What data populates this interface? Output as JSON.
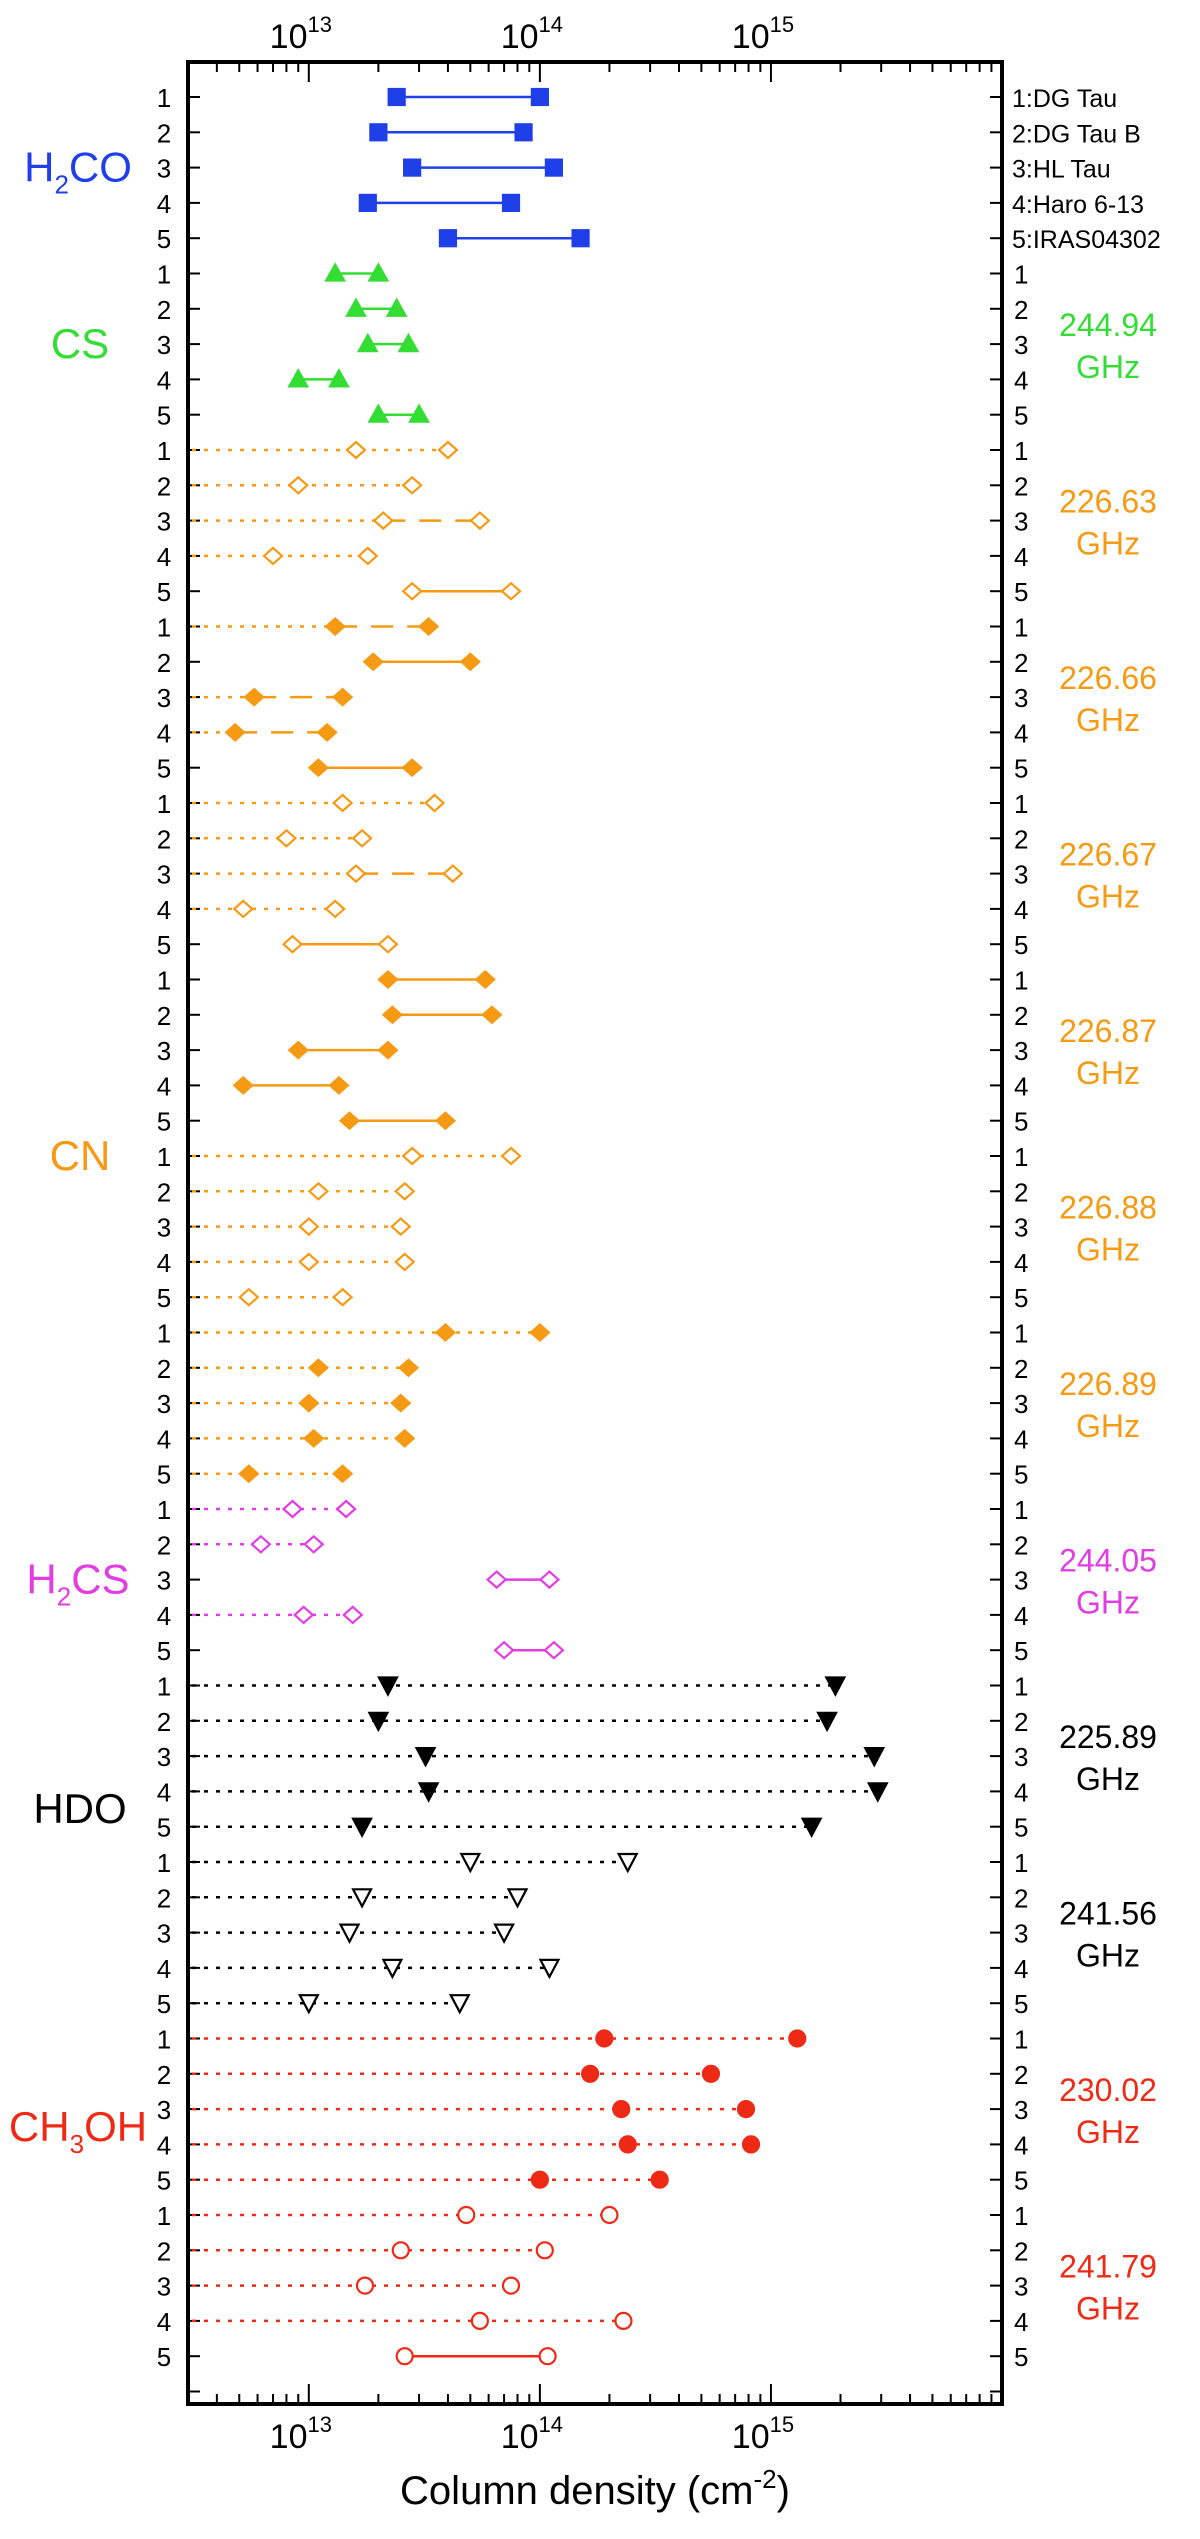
{
  "chart_data": {
    "type": "scatter",
    "xlabel": "Column density (cm",
    "xlabel_sup": "-2",
    "xlabel_close": ")",
    "xscale": "log",
    "xlim": [
      3000000000000.0,
      1e+16
    ],
    "ticks": [
      {
        "value": 10000000000000.0,
        "base": "10",
        "exp": "13"
      },
      {
        "value": 100000000000000.0,
        "base": "10",
        "exp": "14"
      },
      {
        "value": 1000000000000000.0,
        "base": "10",
        "exp": "15"
      }
    ],
    "sources": [
      "1:DG Tau",
      "2:DG Tau B",
      "3:HL Tau",
      "4:Haro 6-13",
      "5:IRAS04302"
    ],
    "molecules": [
      {
        "name": "H",
        "sub": "2",
        "tail": "CO",
        "color": "#1f3fe8"
      },
      {
        "name": "CS",
        "sub": "",
        "tail": "",
        "color": "#33dd33"
      },
      {
        "name": "CN",
        "sub": "",
        "tail": "",
        "color": "#f59a12"
      },
      {
        "name": "H",
        "sub": "2",
        "tail": "CS",
        "color": "#e23de3"
      },
      {
        "name": "HDO",
        "sub": "",
        "tail": "",
        "color": "#000000"
      },
      {
        "name": "CH",
        "sub": "3",
        "tail": "OH",
        "color": "#ee2a16"
      }
    ],
    "frequencies": [
      {
        "value": "244.94",
        "unit": "GHz",
        "color": "#33dd33"
      },
      {
        "value": "226.63",
        "unit": "GHz",
        "color": "#f59a12"
      },
      {
        "value": "226.66",
        "unit": "GHz",
        "color": "#f59a12"
      },
      {
        "value": "226.67",
        "unit": "GHz",
        "color": "#f59a12"
      },
      {
        "value": "226.87",
        "unit": "GHz",
        "color": "#f59a12"
      },
      {
        "value": "226.88",
        "unit": "GHz",
        "color": "#f59a12"
      },
      {
        "value": "226.89",
        "unit": "GHz",
        "color": "#f59a12"
      },
      {
        "value": "244.05",
        "unit": "GHz",
        "color": "#e23de3"
      },
      {
        "value": "225.89",
        "unit": "GHz",
        "color": "#000000"
      },
      {
        "value": "241.56",
        "unit": "GHz",
        "color": "#000000"
      },
      {
        "value": "230.02",
        "unit": "GHz",
        "color": "#ee2a16"
      },
      {
        "value": "241.79",
        "unit": "GHz",
        "color": "#ee2a16"
      }
    ],
    "rows": [
      {
        "label": "1",
        "low": 24000000000000.0,
        "high": 100000000000000.0,
        "style": "solid",
        "marker": "square",
        "fill": true,
        "color": "#1f3fe8"
      },
      {
        "label": "2",
        "low": 20000000000000.0,
        "high": 85000000000000.0,
        "style": "solid",
        "marker": "square",
        "fill": true,
        "color": "#1f3fe8"
      },
      {
        "label": "3",
        "low": 28000000000000.0,
        "high": 115000000000000.0,
        "style": "solid",
        "marker": "square",
        "fill": true,
        "color": "#1f3fe8"
      },
      {
        "label": "4",
        "low": 18000000000000.0,
        "high": 75000000000000.0,
        "style": "solid",
        "marker": "square",
        "fill": true,
        "color": "#1f3fe8"
      },
      {
        "label": "5",
        "low": 40000000000000.0,
        "high": 150000000000000.0,
        "style": "solid",
        "marker": "square",
        "fill": true,
        "color": "#1f3fe8"
      },
      {
        "label": "1",
        "low": 13000000000000.0,
        "high": 20000000000000.0,
        "style": "solid",
        "marker": "triangle",
        "fill": true,
        "color": "#33dd33"
      },
      {
        "label": "2",
        "low": 16000000000000.0,
        "high": 24000000000000.0,
        "style": "solid",
        "marker": "triangle",
        "fill": true,
        "color": "#33dd33"
      },
      {
        "label": "3",
        "low": 18000000000000.0,
        "high": 27000000000000.0,
        "style": "solid",
        "marker": "triangle",
        "fill": true,
        "color": "#33dd33"
      },
      {
        "label": "4",
        "low": 9000000000000.0,
        "high": 13500000000000.0,
        "style": "solid",
        "marker": "triangle",
        "fill": true,
        "color": "#33dd33"
      },
      {
        "label": "5",
        "low": 20000000000000.0,
        "high": 30000000000000.0,
        "style": "solid",
        "marker": "triangle",
        "fill": true,
        "color": "#33dd33"
      },
      {
        "label": "1",
        "low": 16000000000000.0,
        "high": 40000000000000.0,
        "style": "dotted",
        "marker": "diamond",
        "fill": false,
        "color": "#f59a12"
      },
      {
        "label": "2",
        "low": 9000000000000.0,
        "high": 28000000000000.0,
        "style": "dotted",
        "marker": "diamond",
        "fill": false,
        "color": "#f59a12"
      },
      {
        "label": "3",
        "low": 21000000000000.0,
        "high": 55000000000000.0,
        "style": "dashed",
        "marker": "diamond",
        "fill": false,
        "color": "#f59a12"
      },
      {
        "label": "4",
        "low": 7000000000000.0,
        "high": 18000000000000.0,
        "style": "dotted",
        "marker": "diamond",
        "fill": false,
        "color": "#f59a12"
      },
      {
        "label": "5",
        "low": 28000000000000.0,
        "high": 75000000000000.0,
        "style": "solid",
        "marker": "diamond",
        "fill": false,
        "color": "#f59a12"
      },
      {
        "label": "1",
        "low": 13000000000000.0,
        "high": 33000000000000.0,
        "style": "dashed",
        "marker": "diamond",
        "fill": true,
        "color": "#f59a12"
      },
      {
        "label": "2",
        "low": 19000000000000.0,
        "high": 50000000000000.0,
        "style": "solid",
        "marker": "diamond",
        "fill": true,
        "color": "#f59a12"
      },
      {
        "label": "3",
        "low": 5800000000000.0,
        "high": 14000000000000.0,
        "style": "dashed",
        "marker": "diamond",
        "fill": true,
        "color": "#f59a12"
      },
      {
        "label": "4",
        "low": 4800000000000.0,
        "high": 12000000000000.0,
        "style": "dashed",
        "marker": "diamond",
        "fill": true,
        "color": "#f59a12"
      },
      {
        "label": "5",
        "low": 11000000000000.0,
        "high": 28000000000000.0,
        "style": "solid",
        "marker": "diamond",
        "fill": true,
        "color": "#f59a12"
      },
      {
        "label": "1",
        "low": 14000000000000.0,
        "high": 35000000000000.0,
        "style": "dotted",
        "marker": "diamond",
        "fill": false,
        "color": "#f59a12"
      },
      {
        "label": "2",
        "low": 8000000000000.0,
        "high": 17000000000000.0,
        "style": "dotted",
        "marker": "diamond",
        "fill": false,
        "color": "#f59a12"
      },
      {
        "label": "3",
        "low": 16000000000000.0,
        "high": 42000000000000.0,
        "style": "dashed",
        "marker": "diamond",
        "fill": false,
        "color": "#f59a12"
      },
      {
        "label": "4",
        "low": 5200000000000.0,
        "high": 13000000000000.0,
        "style": "dotted",
        "marker": "diamond",
        "fill": false,
        "color": "#f59a12"
      },
      {
        "label": "5",
        "low": 8500000000000.0,
        "high": 22000000000000.0,
        "style": "solid",
        "marker": "diamond",
        "fill": false,
        "color": "#f59a12"
      },
      {
        "label": "1",
        "low": 22000000000000.0,
        "high": 58000000000000.0,
        "style": "solid",
        "marker": "diamond",
        "fill": true,
        "color": "#f59a12"
      },
      {
        "label": "2",
        "low": 23000000000000.0,
        "high": 62000000000000.0,
        "style": "solid",
        "marker": "diamond",
        "fill": true,
        "color": "#f59a12"
      },
      {
        "label": "3",
        "low": 9000000000000.0,
        "high": 22000000000000.0,
        "style": "solid",
        "marker": "diamond",
        "fill": true,
        "color": "#f59a12"
      },
      {
        "label": "4",
        "low": 5200000000000.0,
        "high": 13500000000000.0,
        "style": "solid",
        "marker": "diamond",
        "fill": true,
        "color": "#f59a12"
      },
      {
        "label": "5",
        "low": 15000000000000.0,
        "high": 39000000000000.0,
        "style": "solid",
        "marker": "diamond",
        "fill": true,
        "color": "#f59a12"
      },
      {
        "label": "1",
        "low": 28000000000000.0,
        "high": 75000000000000.0,
        "style": "dotted",
        "marker": "diamond",
        "fill": false,
        "color": "#f59a12"
      },
      {
        "label": "2",
        "low": 11000000000000.0,
        "high": 26000000000000.0,
        "style": "dotted",
        "marker": "diamond",
        "fill": false,
        "color": "#f59a12"
      },
      {
        "label": "3",
        "low": 10000000000000.0,
        "high": 25000000000000.0,
        "style": "dotted",
        "marker": "diamond",
        "fill": false,
        "color": "#f59a12"
      },
      {
        "label": "4",
        "low": 10000000000000.0,
        "high": 26000000000000.0,
        "style": "dotted",
        "marker": "diamond",
        "fill": false,
        "color": "#f59a12"
      },
      {
        "label": "5",
        "low": 5500000000000.0,
        "high": 14000000000000.0,
        "style": "dotted",
        "marker": "diamond",
        "fill": false,
        "color": "#f59a12"
      },
      {
        "label": "1",
        "low": 39000000000000.0,
        "high": 100000000000000.0,
        "style": "dotted",
        "marker": "diamond",
        "fill": true,
        "color": "#f59a12"
      },
      {
        "label": "2",
        "low": 11000000000000.0,
        "high": 27000000000000.0,
        "style": "dotted",
        "marker": "diamond",
        "fill": true,
        "color": "#f59a12"
      },
      {
        "label": "3",
        "low": 10000000000000.0,
        "high": 25000000000000.0,
        "style": "dotted",
        "marker": "diamond",
        "fill": true,
        "color": "#f59a12"
      },
      {
        "label": "4",
        "low": 10500000000000.0,
        "high": 26000000000000.0,
        "style": "dotted",
        "marker": "diamond",
        "fill": true,
        "color": "#f59a12"
      },
      {
        "label": "5",
        "low": 5500000000000.0,
        "high": 14000000000000.0,
        "style": "dotted",
        "marker": "diamond",
        "fill": true,
        "color": "#f59a12"
      },
      {
        "label": "1",
        "low": 8500000000000.0,
        "high": 14500000000000.0,
        "style": "dotted",
        "marker": "diamond",
        "fill": false,
        "color": "#e23de3"
      },
      {
        "label": "2",
        "low": 6200000000000.0,
        "high": 10500000000000.0,
        "style": "dotted",
        "marker": "diamond",
        "fill": false,
        "color": "#e23de3"
      },
      {
        "label": "3",
        "low": 65000000000000.0,
        "high": 110000000000000.0,
        "style": "solid",
        "marker": "diamond",
        "fill": false,
        "color": "#e23de3"
      },
      {
        "label": "4",
        "low": 9500000000000.0,
        "high": 15500000000000.0,
        "style": "dotted",
        "marker": "diamond",
        "fill": false,
        "color": "#e23de3"
      },
      {
        "label": "5",
        "low": 70000000000000.0,
        "high": 115000000000000.0,
        "style": "solid",
        "marker": "diamond",
        "fill": false,
        "color": "#e23de3"
      },
      {
        "label": "1",
        "low": 22000000000000.0,
        "high": 1900000000000000.0,
        "style": "dotted",
        "marker": "triangle-down",
        "fill": true,
        "color": "#000000"
      },
      {
        "label": "2",
        "low": 20000000000000.0,
        "high": 1750000000000000.0,
        "style": "dotted",
        "marker": "triangle-down",
        "fill": true,
        "color": "#000000"
      },
      {
        "label": "3",
        "low": 32000000000000.0,
        "high": 2800000000000000.0,
        "style": "dotted",
        "marker": "triangle-down",
        "fill": true,
        "color": "#000000"
      },
      {
        "label": "4",
        "low": 33000000000000.0,
        "high": 2900000000000000.0,
        "style": "dotted",
        "marker": "triangle-down",
        "fill": true,
        "color": "#000000"
      },
      {
        "label": "5",
        "low": 17000000000000.0,
        "high": 1500000000000000.0,
        "style": "dotted",
        "marker": "triangle-down",
        "fill": true,
        "color": "#000000"
      },
      {
        "label": "1",
        "low": 50000000000000.0,
        "high": 240000000000000.0,
        "style": "dotted",
        "marker": "triangle-down",
        "fill": false,
        "color": "#000000"
      },
      {
        "label": "2",
        "low": 17000000000000.0,
        "high": 80000000000000.0,
        "style": "dotted",
        "marker": "triangle-down",
        "fill": false,
        "color": "#000000"
      },
      {
        "label": "3",
        "low": 15000000000000.0,
        "high": 70000000000000.0,
        "style": "dotted",
        "marker": "triangle-down",
        "fill": false,
        "color": "#000000"
      },
      {
        "label": "4",
        "low": 23000000000000.0,
        "high": 110000000000000.0,
        "style": "dotted",
        "marker": "triangle-down",
        "fill": false,
        "color": "#000000"
      },
      {
        "label": "5",
        "low": 10000000000000.0,
        "high": 45000000000000.0,
        "style": "dotted",
        "marker": "triangle-down",
        "fill": false,
        "color": "#000000"
      },
      {
        "label": "1",
        "low": 190000000000000.0,
        "high": 1300000000000000.0,
        "style": "dotted",
        "marker": "circle",
        "fill": true,
        "color": "#ee2a16"
      },
      {
        "label": "2",
        "low": 165000000000000.0,
        "high": 550000000000000.0,
        "style": "dotted",
        "marker": "circle",
        "fill": true,
        "color": "#ee2a16"
      },
      {
        "label": "3",
        "low": 225000000000000.0,
        "high": 780000000000000.0,
        "style": "dotted",
        "marker": "circle",
        "fill": true,
        "color": "#ee2a16"
      },
      {
        "label": "4",
        "low": 240000000000000.0,
        "high": 820000000000000.0,
        "style": "dotted",
        "marker": "circle",
        "fill": true,
        "color": "#ee2a16"
      },
      {
        "label": "5",
        "low": 100000000000000.0,
        "high": 330000000000000.0,
        "style": "dotted",
        "marker": "circle",
        "fill": true,
        "color": "#ee2a16"
      },
      {
        "label": "1",
        "low": 48000000000000.0,
        "high": 200000000000000.0,
        "style": "dotted",
        "marker": "circle",
        "fill": false,
        "color": "#ee2a16"
      },
      {
        "label": "2",
        "low": 25000000000000.0,
        "high": 105000000000000.0,
        "style": "dotted",
        "marker": "circle",
        "fill": false,
        "color": "#ee2a16"
      },
      {
        "label": "3",
        "low": 17500000000000.0,
        "high": 75000000000000.0,
        "style": "dotted",
        "marker": "circle",
        "fill": false,
        "color": "#ee2a16"
      },
      {
        "label": "4",
        "low": 55000000000000.0,
        "high": 230000000000000.0,
        "style": "dotted",
        "marker": "circle",
        "fill": false,
        "color": "#ee2a16"
      },
      {
        "label": "5",
        "low": 26000000000000.0,
        "high": 108000000000000.0,
        "style": "solid",
        "marker": "circle",
        "fill": false,
        "color": "#ee2a16"
      }
    ]
  }
}
